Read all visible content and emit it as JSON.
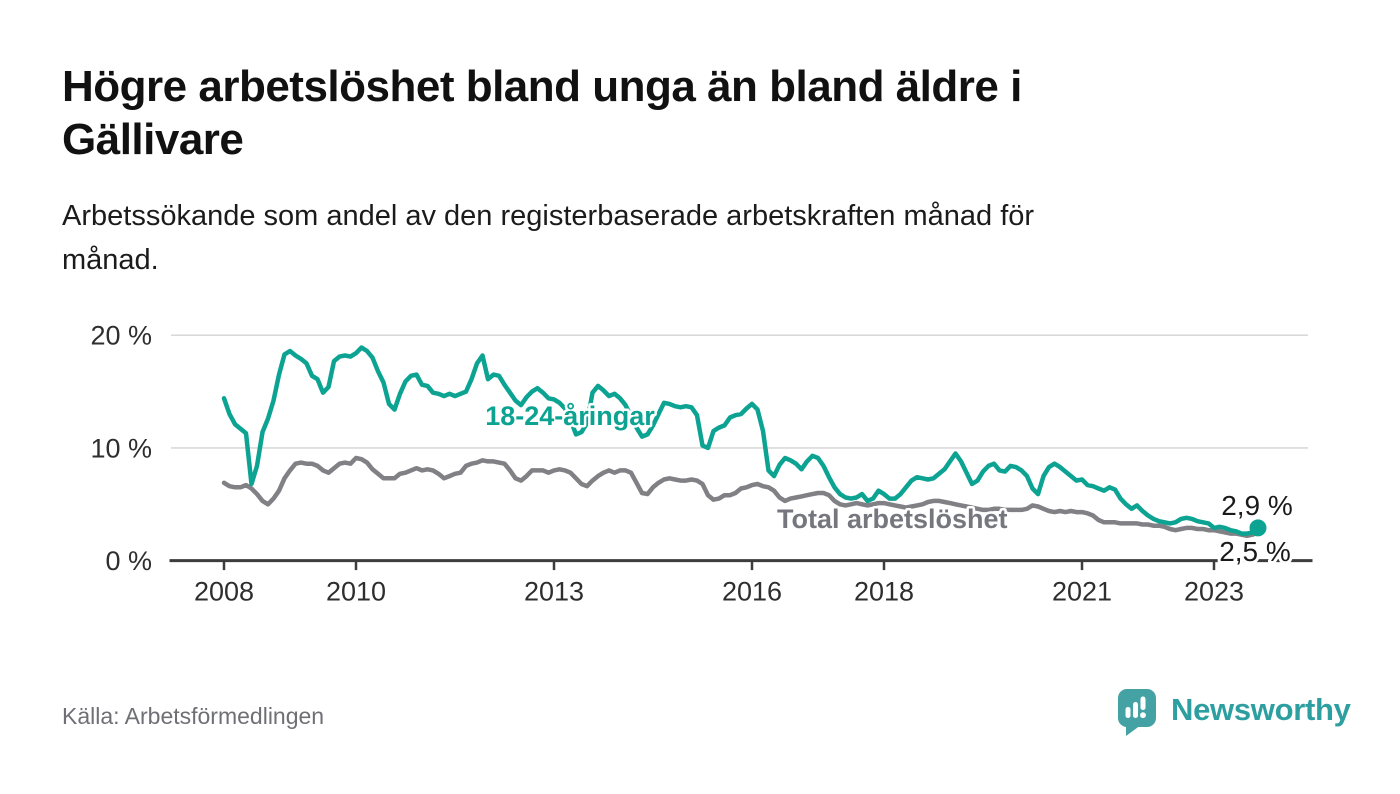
{
  "page": {
    "title_lines": [
      "Högre arbetslöshet bland unga än bland äldre i",
      "Gällivare"
    ],
    "subtitle_lines": [
      "Arbetssökande som andel av den registerbaserade arbetskraften månad för",
      "månad."
    ]
  },
  "footer": {
    "source": "Källa: Arbetsförmedlingen",
    "brand": "Newsworthy"
  },
  "colors": {
    "youth_line": "#0ca392",
    "total_line": "#808085",
    "brand_teal": "#44a2a4",
    "brand_text": "#2d9fa0",
    "axis": "#3d3d3d",
    "gridline": "#d9d9d9"
  },
  "chart_data": {
    "type": "line",
    "title": "Högre arbetslöshet bland unga än bland äldre i Gällivare",
    "subtitle": "Arbetssökande som andel av den registerbaserade arbetskraften månad för månad.",
    "x_unit": "month",
    "x_start": "2008-01",
    "x_end": "2023-09",
    "ylim": [
      0,
      21
    ],
    "grid": "horizontal",
    "legend_position": "inline-labels",
    "x_ticks": [
      {
        "label": "2008",
        "year": 2008
      },
      {
        "label": "2010",
        "year": 2010
      },
      {
        "label": "2013",
        "year": 2013
      },
      {
        "label": "2016",
        "year": 2016
      },
      {
        "label": "2018",
        "year": 2018
      },
      {
        "label": "2021",
        "year": 2021
      },
      {
        "label": "2023",
        "year": 2023
      }
    ],
    "y_ticks": [
      {
        "label": "0 %",
        "value": 0
      },
      {
        "label": "10 %",
        "value": 10
      },
      {
        "label": "20 %",
        "value": 20
      }
    ],
    "series": [
      {
        "name": "18-24-åringar",
        "color": "#0ca392",
        "end_label": "2,9 %",
        "end_value": 2.9,
        "marker_on_last_point": true,
        "values": [
          14.4,
          13.0,
          12.1,
          11.7,
          11.3,
          6.8,
          8.4,
          11.4,
          12.6,
          14.2,
          16.5,
          18.3,
          18.6,
          18.2,
          17.9,
          17.5,
          16.4,
          16.1,
          14.9,
          15.4,
          17.7,
          18.1,
          18.2,
          18.1,
          18.4,
          18.9,
          18.6,
          18.0,
          16.8,
          15.8,
          13.9,
          13.4,
          14.8,
          15.9,
          16.4,
          16.5,
          15.6,
          15.5,
          14.9,
          14.8,
          14.6,
          14.8,
          14.6,
          14.8,
          15.0,
          16.1,
          17.5,
          18.2,
          16.1,
          16.5,
          16.4,
          15.6,
          14.9,
          14.2,
          13.8,
          14.5,
          15.0,
          15.3,
          14.9,
          14.4,
          14.3,
          14.0,
          13.5,
          12.5,
          11.2,
          11.4,
          12.2,
          14.9,
          15.5,
          15.1,
          14.6,
          14.8,
          14.4,
          13.8,
          12.8,
          11.8,
          11.0,
          11.2,
          12.0,
          13.0,
          14.0,
          13.9,
          13.7,
          13.6,
          13.7,
          13.6,
          12.9,
          10.2,
          10.0,
          11.5,
          11.8,
          12.0,
          12.7,
          12.9,
          13.0,
          13.5,
          13.9,
          13.4,
          11.5,
          8.0,
          7.5,
          8.5,
          9.1,
          8.9,
          8.6,
          8.1,
          8.8,
          9.3,
          9.1,
          8.4,
          7.4,
          6.5,
          5.9,
          5.6,
          5.5,
          5.6,
          5.9,
          5.3,
          5.5,
          6.2,
          5.9,
          5.5,
          5.5,
          5.9,
          6.5,
          7.1,
          7.4,
          7.3,
          7.2,
          7.3,
          7.7,
          8.1,
          8.8,
          9.5,
          8.8,
          7.8,
          6.8,
          7.1,
          7.9,
          8.4,
          8.6,
          8.0,
          7.9,
          8.4,
          8.3,
          8.0,
          7.5,
          6.4,
          5.9,
          7.5,
          8.3,
          8.6,
          8.3,
          7.9,
          7.5,
          7.1,
          7.2,
          6.7,
          6.6,
          6.4,
          6.2,
          6.5,
          6.3,
          5.5,
          5.0,
          4.6,
          4.9,
          4.4,
          4.0,
          3.7,
          3.5,
          3.4,
          3.3,
          3.4,
          3.7,
          3.8,
          3.7,
          3.5,
          3.4,
          3.3,
          2.9,
          3.0,
          2.9,
          2.7,
          2.6,
          2.4,
          2.4,
          2.5,
          2.9
        ]
      },
      {
        "name": "Total arbetslöshet",
        "color": "#808085",
        "end_label": "2,5 %",
        "end_value": 2.5,
        "marker_on_last_point": false,
        "values": [
          6.9,
          6.6,
          6.5,
          6.5,
          6.7,
          6.4,
          5.9,
          5.3,
          5.0,
          5.5,
          6.2,
          7.3,
          8.0,
          8.6,
          8.7,
          8.6,
          8.6,
          8.4,
          8.0,
          7.8,
          8.2,
          8.6,
          8.7,
          8.6,
          9.1,
          9.0,
          8.7,
          8.1,
          7.7,
          7.3,
          7.3,
          7.3,
          7.7,
          7.8,
          8.0,
          8.2,
          8.0,
          8.1,
          8.0,
          7.7,
          7.3,
          7.5,
          7.7,
          7.8,
          8.4,
          8.6,
          8.7,
          8.9,
          8.8,
          8.8,
          8.7,
          8.6,
          8.0,
          7.3,
          7.1,
          7.5,
          8.0,
          8.0,
          8.0,
          7.8,
          8.0,
          8.1,
          8.0,
          7.8,
          7.3,
          6.8,
          6.6,
          7.1,
          7.5,
          7.8,
          8.0,
          7.8,
          8.0,
          8.0,
          7.8,
          6.9,
          6.0,
          5.9,
          6.5,
          6.9,
          7.2,
          7.3,
          7.2,
          7.1,
          7.1,
          7.2,
          7.1,
          6.8,
          5.8,
          5.4,
          5.5,
          5.8,
          5.8,
          6.0,
          6.4,
          6.5,
          6.7,
          6.8,
          6.6,
          6.5,
          6.2,
          5.6,
          5.3,
          5.5,
          5.6,
          5.7,
          5.8,
          5.9,
          6.0,
          6.0,
          5.8,
          5.3,
          5.0,
          4.9,
          5.0,
          5.1,
          5.0,
          4.9,
          5.0,
          5.1,
          5.1,
          5.0,
          4.9,
          4.8,
          4.7,
          4.8,
          4.9,
          5.0,
          5.2,
          5.3,
          5.3,
          5.2,
          5.1,
          5.0,
          4.9,
          4.8,
          4.7,
          4.6,
          4.5,
          4.5,
          4.6,
          4.6,
          4.5,
          4.5,
          4.5,
          4.5,
          4.6,
          4.9,
          4.8,
          4.6,
          4.4,
          4.3,
          4.4,
          4.3,
          4.4,
          4.3,
          4.3,
          4.2,
          4.0,
          3.6,
          3.4,
          3.4,
          3.4,
          3.3,
          3.3,
          3.3,
          3.3,
          3.2,
          3.2,
          3.1,
          3.1,
          3.0,
          2.8,
          2.7,
          2.8,
          2.9,
          2.9,
          2.8,
          2.8,
          2.7,
          2.7,
          2.6,
          2.5,
          2.4,
          2.4,
          2.3,
          2.2,
          2.3,
          2.5
        ]
      }
    ]
  }
}
